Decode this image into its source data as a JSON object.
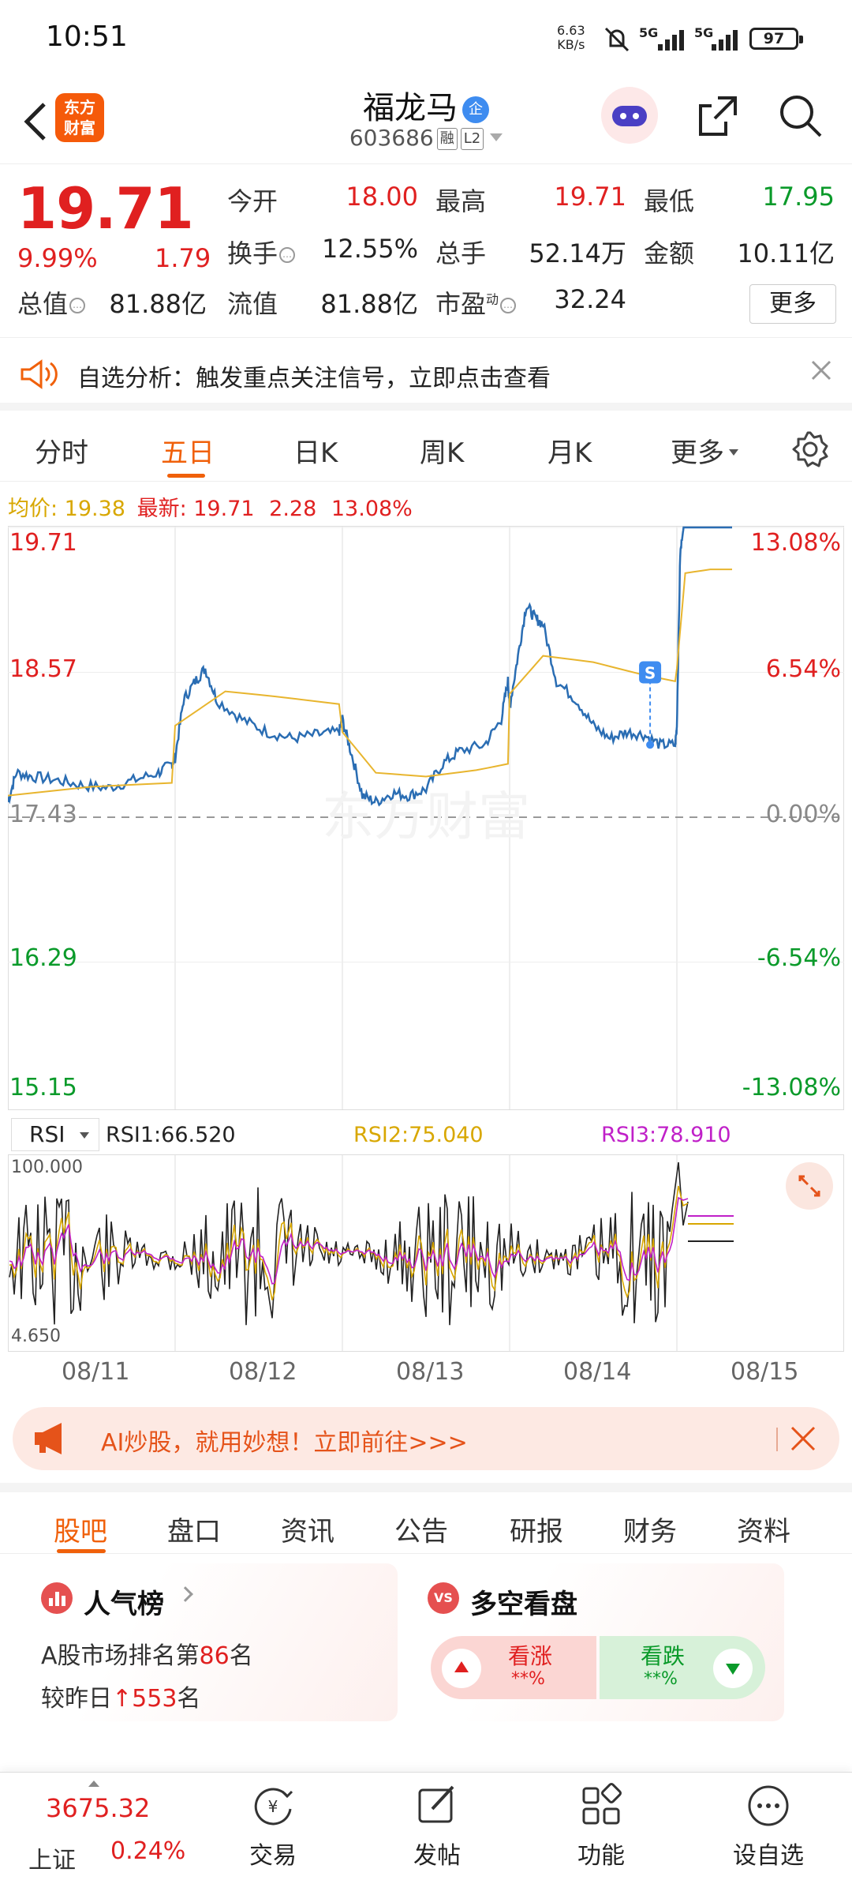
{
  "status_bar": {
    "time": "10:51",
    "net_speed_value": "6.63",
    "net_speed_unit": "KB/s",
    "sim1": "5G",
    "sim2": "5G",
    "battery": "97"
  },
  "header": {
    "app_logo_line1": "东方",
    "app_logo_line2": "财富",
    "stock_name": "福龙马",
    "badge": "企",
    "stock_code": "603686",
    "tag1": "融",
    "tag2": "L2"
  },
  "quote": {
    "last_price": "19.71",
    "change_pct": "9.99%",
    "change_amt": "1.79",
    "fields": [
      {
        "label": "今开",
        "value": "18.00"
      },
      {
        "label": "最高",
        "value": "19.71"
      },
      {
        "label": "最低",
        "value": "17.95"
      },
      {
        "label": "换手",
        "value": "12.55%"
      },
      {
        "label": "总手",
        "value": "52.14万"
      },
      {
        "label": "金额",
        "value": "10.11亿"
      },
      {
        "label": "总值",
        "value": "81.88亿"
      },
      {
        "label": "流值",
        "value": "81.88亿"
      },
      {
        "label": "市盈",
        "value": "32.24"
      }
    ],
    "pe_sup": "动",
    "more": "更多"
  },
  "notice": {
    "text": "自选分析：触发重点关注信号，立即点击查看"
  },
  "period_tabs": [
    "分时",
    "五日",
    "日K",
    "周K",
    "月K",
    "更多"
  ],
  "active_period": "五日",
  "chart_data": {
    "type": "line",
    "avg_label": "均价: 19.38",
    "latest_label": "最新: 19.71",
    "latest_chg": "2.28",
    "latest_pct": "13.08%",
    "y_left_ticks": [
      "19.71",
      "18.57",
      "17.43",
      "16.29",
      "15.15"
    ],
    "y_right_ticks": [
      "13.08%",
      "6.54%",
      "0.00%",
      "-6.54%",
      "-13.08%"
    ],
    "ylim": [
      15.15,
      19.71
    ],
    "base_price": 17.43,
    "days": [
      "08/11",
      "08/12",
      "08/13",
      "08/14",
      "08/15"
    ],
    "watermark": "东方财富",
    "signal_marker": "S",
    "series": [
      {
        "name": "价格",
        "color": "#2a6db3",
        "points": [
          [
            0,
            17.55
          ],
          [
            0.05,
            17.78
          ],
          [
            0.15,
            17.75
          ],
          [
            0.3,
            17.72
          ],
          [
            0.45,
            17.68
          ],
          [
            0.6,
            17.66
          ],
          [
            0.75,
            17.72
          ],
          [
            0.9,
            17.78
          ],
          [
            0.98,
            17.85
          ],
          [
            1.0,
            17.9
          ],
          [
            1.05,
            18.35
          ],
          [
            1.12,
            18.5
          ],
          [
            1.18,
            18.6
          ],
          [
            1.25,
            18.35
          ],
          [
            1.4,
            18.2
          ],
          [
            1.55,
            18.1
          ],
          [
            1.7,
            18.05
          ],
          [
            1.85,
            18.08
          ],
          [
            1.98,
            18.1
          ],
          [
            2.0,
            18.2
          ],
          [
            2.05,
            17.95
          ],
          [
            2.12,
            17.6
          ],
          [
            2.2,
            17.55
          ],
          [
            2.3,
            17.62
          ],
          [
            2.4,
            17.6
          ],
          [
            2.5,
            17.65
          ],
          [
            2.6,
            17.85
          ],
          [
            2.7,
            17.95
          ],
          [
            2.85,
            18.0
          ],
          [
            2.95,
            18.2
          ],
          [
            2.99,
            18.5
          ],
          [
            3.0,
            18.3
          ],
          [
            3.05,
            18.7
          ],
          [
            3.1,
            19.1
          ],
          [
            3.15,
            19.0
          ],
          [
            3.2,
            18.95
          ],
          [
            3.28,
            18.5
          ],
          [
            3.4,
            18.35
          ],
          [
            3.5,
            18.15
          ],
          [
            3.6,
            18.05
          ],
          [
            3.7,
            18.1
          ],
          [
            3.8,
            18.08
          ],
          [
            3.9,
            18.0
          ],
          [
            3.99,
            18.0
          ],
          [
            4.0,
            18.15
          ],
          [
            4.02,
            19.5
          ],
          [
            4.04,
            19.71
          ],
          [
            4.1,
            19.71
          ],
          [
            4.2,
            19.71
          ],
          [
            4.33,
            19.71
          ]
        ]
      },
      {
        "name": "均价",
        "color": "#e8b52e",
        "points": [
          [
            0,
            17.6
          ],
          [
            0.5,
            17.67
          ],
          [
            0.98,
            17.7
          ],
          [
            1.0,
            18.15
          ],
          [
            1.3,
            18.42
          ],
          [
            1.6,
            18.38
          ],
          [
            1.98,
            18.32
          ],
          [
            2.0,
            18.1
          ],
          [
            2.2,
            17.78
          ],
          [
            2.5,
            17.75
          ],
          [
            2.8,
            17.8
          ],
          [
            2.99,
            17.85
          ],
          [
            3.0,
            18.4
          ],
          [
            3.2,
            18.7
          ],
          [
            3.5,
            18.65
          ],
          [
            3.8,
            18.55
          ],
          [
            3.99,
            18.5
          ],
          [
            4.0,
            18.6
          ],
          [
            4.05,
            19.35
          ],
          [
            4.2,
            19.38
          ],
          [
            4.33,
            19.38
          ]
        ]
      }
    ]
  },
  "rsi": {
    "selector": "RSI",
    "rsi1": "RSI1:66.520",
    "rsi2": "RSI2:75.040",
    "rsi3": "RSI3:78.910",
    "top": "100.000",
    "bottom": "4.650",
    "colors": {
      "rsi1": "#222222",
      "rsi2": "#d8a700",
      "rsi3": "#c020c8"
    }
  },
  "ai_banner": {
    "text": "AI炒股，就用妙想！立即前往>>>"
  },
  "section_tabs": [
    "股吧",
    "盘口",
    "资讯",
    "公告",
    "研报",
    "财务",
    "资料"
  ],
  "active_section": "股吧",
  "popularity": {
    "title": "人气榜",
    "line1_prefix": "A股市场排名第",
    "rank": "86",
    "line1_suffix": "名",
    "line2_prefix": "较昨日",
    "delta": "553",
    "line2_suffix": "名"
  },
  "bullbear": {
    "icon": "VS",
    "title": "多空看盘",
    "bull_label": "看涨",
    "bull_pct": "**%",
    "bear_label": "看跌",
    "bear_pct": "**%"
  },
  "bottom_nav": {
    "index_value": "3675.32",
    "index_name": "上证",
    "index_change": "0.24%",
    "items": [
      {
        "label": "交易",
        "icon": "yuan-refresh-icon"
      },
      {
        "label": "发帖",
        "icon": "edit-icon"
      },
      {
        "label": "功能",
        "icon": "grid-icon"
      },
      {
        "label": "设自选",
        "icon": "more-dots-icon"
      }
    ]
  }
}
